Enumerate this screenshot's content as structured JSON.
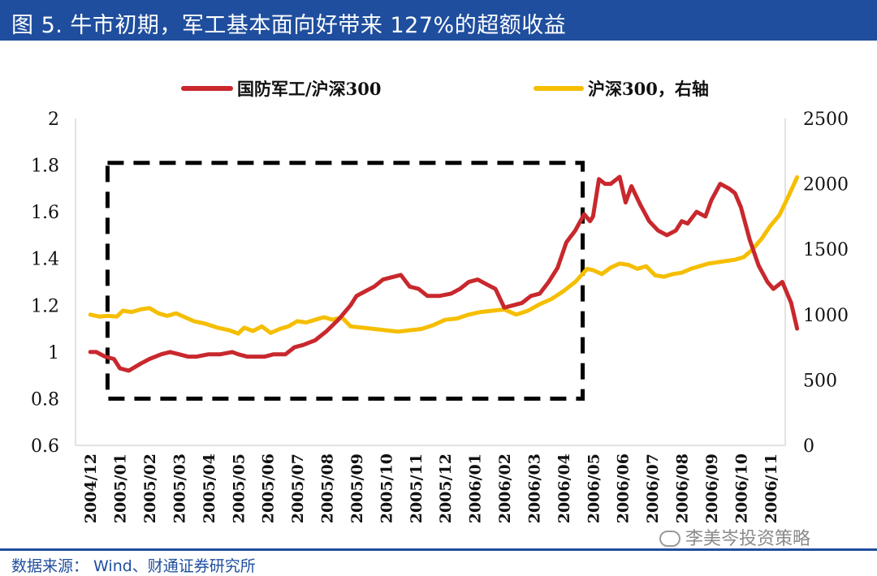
{
  "header": {
    "title": "图 5. 牛市初期，军工基本面向好带来 127%的超额收益"
  },
  "footer": {
    "source": "数据来源：  Wind、财通证券研究所",
    "watermark": "李美岑投资策略"
  },
  "colors": {
    "title_bg": "#1f4e9e",
    "series_red": "#c8282d",
    "series_yellow": "#f5be00",
    "box": "#000000"
  },
  "chart_data": {
    "type": "line",
    "title": "",
    "xlabel": "",
    "ylabel": "",
    "y2label": "",
    "legend_position": "top",
    "grid": false,
    "ylim": [
      0.6,
      2.0
    ],
    "y2lim": [
      0,
      2500
    ],
    "y_ticks": [
      "0.6",
      "0.8",
      "1",
      "1.2",
      "1.4",
      "1.6",
      "1.8",
      "2"
    ],
    "y2_ticks": [
      "0",
      "500",
      "1000",
      "1500",
      "2000",
      "2500"
    ],
    "x_ticks": [
      "2004/12",
      "2005/01",
      "2005/02",
      "2005/03",
      "2005/04",
      "2005/05",
      "2005/06",
      "2005/07",
      "2005/08",
      "2005/09",
      "2005/10",
      "2005/11",
      "2005/12",
      "2006/01",
      "2006/02",
      "2006/03",
      "2006/04",
      "2006/05",
      "2006/06",
      "2006/07",
      "2006/08",
      "2006/09",
      "2006/10",
      "2006/11"
    ],
    "highlight_range": {
      "x_start": 1,
      "x_end": 17.15,
      "y_low": 0.8,
      "y_high": 1.81
    },
    "series": [
      {
        "name": "国防军工/沪深300",
        "axis": "left",
        "x": [
          0,
          0.2,
          0.5,
          0.8,
          1.0,
          1.3,
          1.7,
          2.0,
          2.4,
          2.7,
          3.0,
          3.3,
          3.6,
          4.0,
          4.4,
          4.8,
          5.0,
          5.3,
          5.6,
          5.9,
          6.2,
          6.6,
          6.9,
          7.2,
          7.6,
          8.0,
          8.4,
          8.8,
          9.0,
          9.3,
          9.6,
          9.9,
          10.2,
          10.5,
          10.8,
          11.1,
          11.4,
          11.8,
          12.2,
          12.5,
          12.8,
          13.1,
          13.4,
          13.7,
          14.0,
          14.3,
          14.6,
          14.9,
          15.2,
          15.5,
          15.8,
          16.1,
          16.4,
          16.7,
          16.9,
          17.0,
          17.2,
          17.4,
          17.6,
          17.9,
          18.1,
          18.3,
          18.6,
          18.9,
          19.2,
          19.5,
          19.8,
          20.0,
          20.2,
          20.5,
          20.8,
          21.0,
          21.3,
          21.6,
          21.8,
          22.0,
          22.3,
          22.6,
          22.9,
          23.1,
          23.4,
          23.7,
          23.9
        ],
        "values": [
          1.0,
          1.0,
          0.98,
          0.97,
          0.93,
          0.92,
          0.95,
          0.97,
          0.99,
          1.0,
          0.99,
          0.98,
          0.98,
          0.99,
          0.99,
          1.0,
          0.99,
          0.98,
          0.98,
          0.98,
          0.99,
          0.99,
          1.02,
          1.03,
          1.05,
          1.09,
          1.14,
          1.2,
          1.24,
          1.26,
          1.28,
          1.31,
          1.32,
          1.33,
          1.28,
          1.27,
          1.24,
          1.24,
          1.25,
          1.27,
          1.3,
          1.31,
          1.29,
          1.27,
          1.19,
          1.2,
          1.21,
          1.24,
          1.25,
          1.3,
          1.36,
          1.47,
          1.52,
          1.59,
          1.56,
          1.58,
          1.74,
          1.72,
          1.72,
          1.75,
          1.64,
          1.71,
          1.63,
          1.56,
          1.52,
          1.5,
          1.52,
          1.56,
          1.55,
          1.6,
          1.58,
          1.65,
          1.72,
          1.7,
          1.68,
          1.62,
          1.48,
          1.37,
          1.3,
          1.27,
          1.3,
          1.21,
          1.1
        ]
      },
      {
        "name": "沪深300，右轴",
        "axis": "right",
        "x": [
          0,
          0.3,
          0.6,
          0.9,
          1.1,
          1.4,
          1.7,
          2.0,
          2.3,
          2.6,
          2.9,
          3.2,
          3.5,
          3.9,
          4.3,
          4.7,
          5.0,
          5.2,
          5.5,
          5.8,
          6.1,
          6.4,
          6.7,
          7.0,
          7.3,
          7.6,
          7.9,
          8.2,
          8.5,
          8.8,
          9.2,
          9.6,
          10.0,
          10.4,
          10.8,
          11.2,
          11.6,
          12.0,
          12.4,
          12.8,
          13.2,
          13.6,
          14.0,
          14.4,
          14.8,
          15.2,
          15.6,
          16.0,
          16.4,
          16.8,
          17.0,
          17.3,
          17.6,
          17.9,
          18.2,
          18.5,
          18.8,
          19.1,
          19.4,
          19.7,
          20.0,
          20.3,
          20.6,
          20.9,
          21.2,
          21.5,
          21.8,
          22.1,
          22.4,
          22.7,
          23.0,
          23.3,
          23.6,
          23.9
        ],
        "values": [
          1000,
          985,
          990,
          985,
          1030,
          1020,
          1040,
          1050,
          1010,
          990,
          1010,
          980,
          950,
          930,
          900,
          880,
          855,
          900,
          875,
          910,
          860,
          890,
          910,
          950,
          940,
          960,
          980,
          960,
          980,
          910,
          900,
          890,
          880,
          870,
          880,
          890,
          920,
          960,
          970,
          1000,
          1020,
          1030,
          1040,
          1000,
          1030,
          1080,
          1120,
          1180,
          1250,
          1350,
          1340,
          1310,
          1360,
          1390,
          1380,
          1350,
          1370,
          1300,
          1290,
          1310,
          1320,
          1350,
          1370,
          1390,
          1400,
          1410,
          1420,
          1440,
          1500,
          1580,
          1680,
          1760,
          1900,
          2050
        ]
      }
    ]
  }
}
